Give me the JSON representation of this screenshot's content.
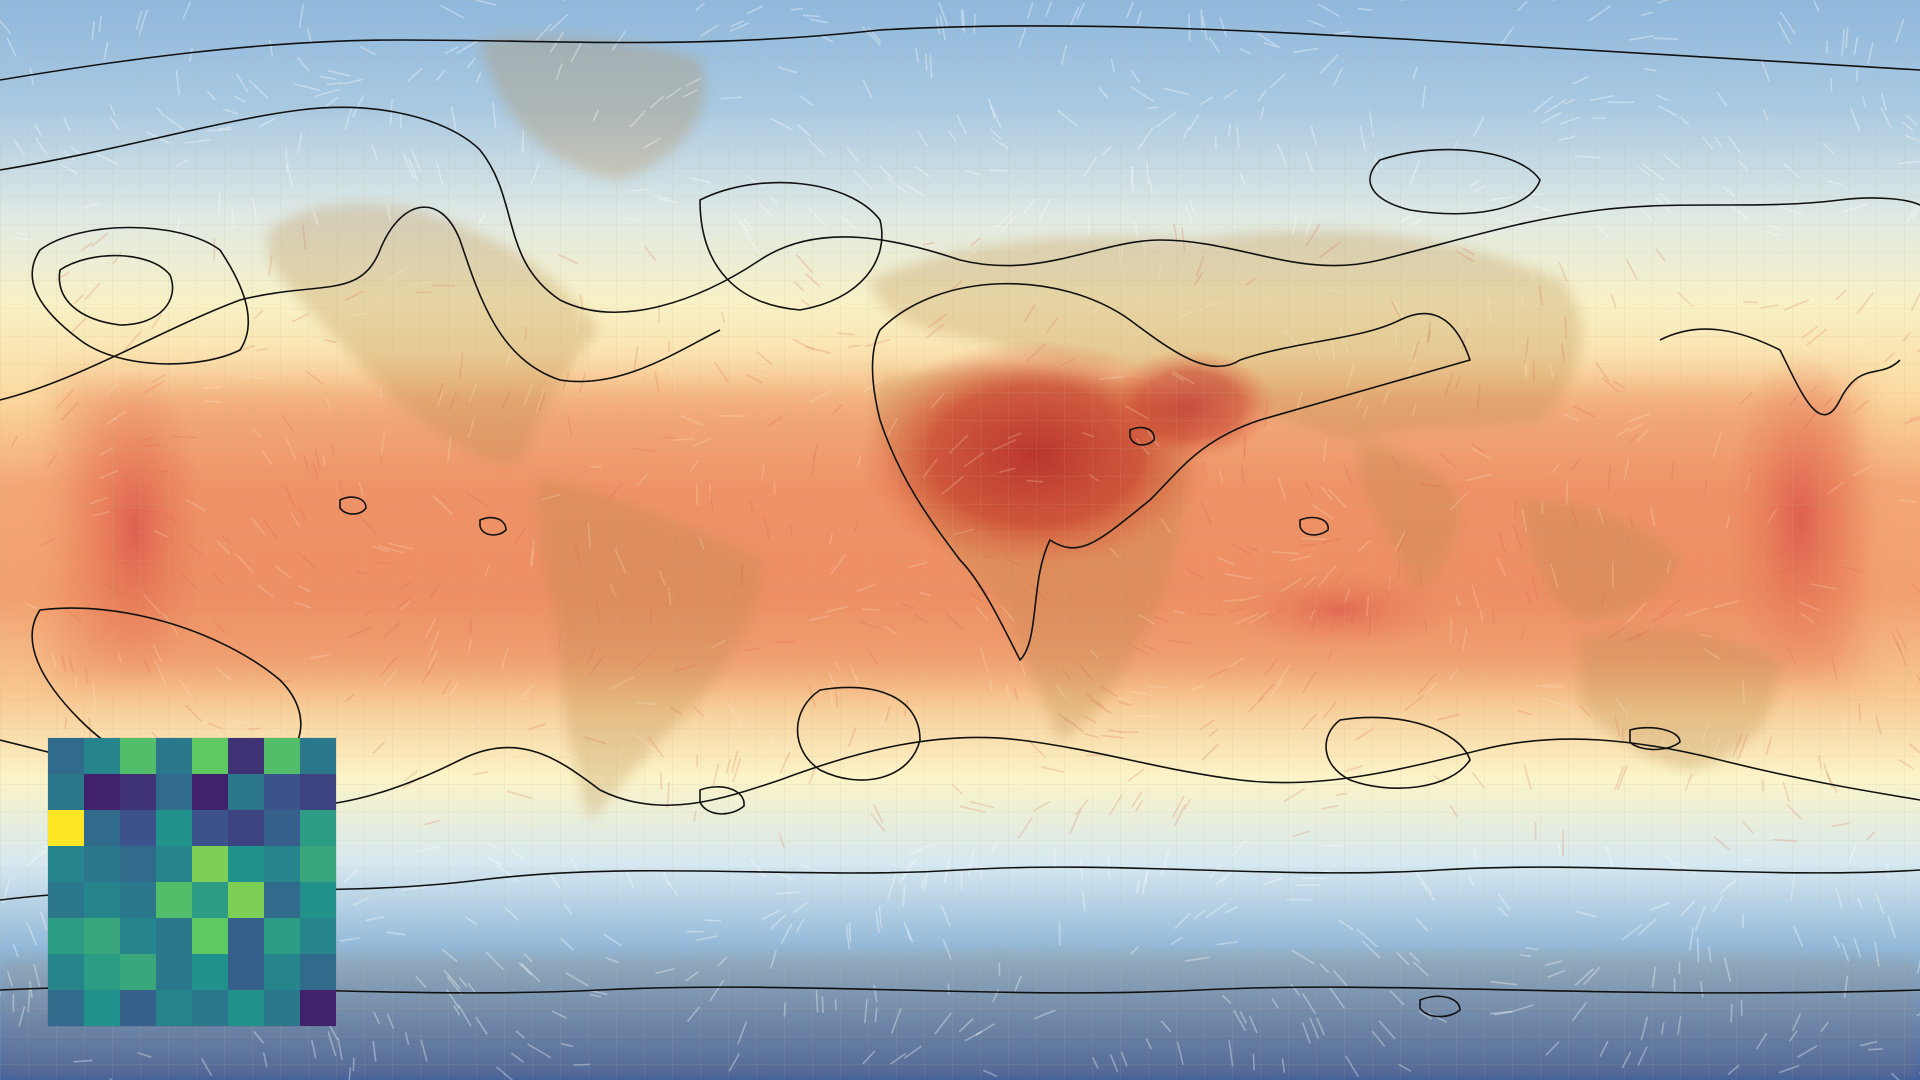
{
  "map": {
    "projection": "equirectangular",
    "field": "temperature",
    "overlay": "wind-streamlines",
    "gridlines": true,
    "contours": true,
    "colormap": "RdYlBu_r",
    "palette": {
      "cold": "#3f65a8",
      "cool": "#8fb8dc",
      "pale": "#d9ecf2",
      "neutral": "#fbf6c9",
      "warm": "#f6c585",
      "hot": "#e9774f",
      "hottest": "#c23a30",
      "land_tint": "#b8884a",
      "contour": "#111111",
      "grid": "#c9b98f"
    }
  },
  "inset": {
    "type": "heatmap",
    "colormap": "viridis",
    "rows": 8,
    "cols": 8,
    "values": [
      [
        0.35,
        0.45,
        0.7,
        0.4,
        0.75,
        0.15,
        0.7,
        0.4
      ],
      [
        0.4,
        0.1,
        0.15,
        0.35,
        0.1,
        0.4,
        0.25,
        0.2
      ],
      [
        1.0,
        0.35,
        0.25,
        0.5,
        0.25,
        0.2,
        0.3,
        0.55
      ],
      [
        0.45,
        0.4,
        0.35,
        0.45,
        0.8,
        0.5,
        0.45,
        0.6
      ],
      [
        0.4,
        0.45,
        0.4,
        0.7,
        0.55,
        0.8,
        0.35,
        0.5
      ],
      [
        0.55,
        0.6,
        0.45,
        0.4,
        0.75,
        0.3,
        0.55,
        0.45
      ],
      [
        0.45,
        0.55,
        0.6,
        0.4,
        0.5,
        0.3,
        0.45,
        0.35
      ],
      [
        0.35,
        0.5,
        0.3,
        0.45,
        0.4,
        0.5,
        0.4,
        0.1
      ]
    ]
  }
}
